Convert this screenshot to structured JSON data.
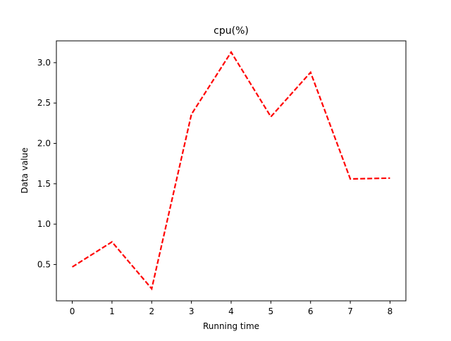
{
  "chart_data": {
    "type": "line",
    "title": "cpu(%)",
    "xlabel": "Running time",
    "ylabel": "Data value",
    "x": [
      0,
      1,
      2,
      3,
      4,
      5,
      6,
      7,
      8
    ],
    "series": [
      {
        "values": [
          0.47,
          0.78,
          0.2,
          2.36,
          3.13,
          2.33,
          2.88,
          1.56,
          1.57
        ],
        "color": "#ff0000",
        "line_style": "dashed"
      }
    ],
    "xlim": [
      -0.4,
      8.4
    ],
    "ylim": [
      0.05,
      3.27
    ],
    "xticks": [
      0,
      1,
      2,
      3,
      4,
      5,
      6,
      7,
      8
    ],
    "yticks": [
      0.5,
      1.0,
      1.5,
      2.0,
      2.5,
      3.0
    ],
    "ytick_labels": [
      "0.5",
      "1.0",
      "1.5",
      "2.0",
      "2.5",
      "3.0"
    ],
    "grid": false,
    "legend": "none"
  }
}
